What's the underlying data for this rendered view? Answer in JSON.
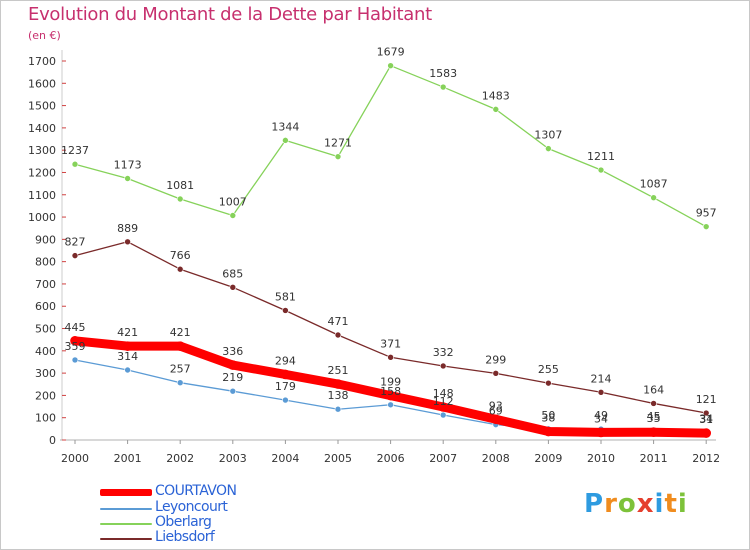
{
  "title": "Evolution du Montant de la Dette par Habitant",
  "unit_label": "(en €)",
  "logo": {
    "text": "Proxiti",
    "letter_colors": [
      "#2e9be0",
      "#f08c1e",
      "#7dc23a",
      "#e53f2e",
      "#2e9be0",
      "#f08c1e",
      "#7dc23a"
    ]
  },
  "chart_data": {
    "type": "line",
    "title": "Evolution du Montant de la Dette par Habitant",
    "ylabel": "(en €)",
    "xlabel": "",
    "ylim": [
      0,
      1700
    ],
    "y_ticks": [
      0,
      100,
      200,
      300,
      400,
      500,
      600,
      700,
      800,
      900,
      1000,
      1100,
      1200,
      1300,
      1400,
      1500,
      1600,
      1700
    ],
    "grid": false,
    "legend_position": "bottom-left",
    "categories": [
      "2000",
      "2001",
      "2002",
      "2003",
      "2004",
      "2005",
      "2006",
      "2007",
      "2008",
      "2009",
      "2010",
      "2011",
      "2012"
    ],
    "series": [
      {
        "name": "COURTAVON",
        "color": "#ff0000",
        "emphasis": true,
        "values": [
          445,
          421,
          421,
          336,
          294,
          251,
          199,
          148,
          93,
          38,
          34,
          35,
          31
        ],
        "labels": [
          "445",
          "421",
          "421",
          "336",
          "294",
          "251",
          "199",
          "148",
          "93",
          "38",
          "34",
          "35",
          "31"
        ]
      },
      {
        "name": "Leyoncourt",
        "color": "#5b9bd5",
        "emphasis": false,
        "values": [
          359,
          314,
          257,
          219,
          179,
          138,
          158,
          112,
          69,
          50,
          49,
          45,
          34
        ],
        "labels": [
          "359",
          "314",
          "257",
          "219",
          "179",
          "138",
          "158",
          "112",
          "69",
          "50",
          "49",
          "45",
          "34"
        ]
      },
      {
        "name": "Oberlarg",
        "color": "#86d25a",
        "emphasis": false,
        "values": [
          1237,
          1173,
          1081,
          1007,
          1344,
          1271,
          1679,
          1583,
          1483,
          1307,
          1211,
          1087,
          957
        ],
        "labels": [
          "1237",
          "1173",
          "1081",
          "1007",
          "1344",
          "1271",
          "1679",
          "1583",
          "1483",
          "1307",
          "1211",
          "1087",
          "957"
        ]
      },
      {
        "name": "Liebsdorf",
        "color": "#7a2a2a",
        "emphasis": false,
        "values": [
          827,
          889,
          766,
          685,
          581,
          471,
          371,
          332,
          299,
          255,
          214,
          164,
          121
        ],
        "labels": [
          "827",
          "889",
          "766",
          "685",
          "581",
          "471",
          "371",
          "332",
          "299",
          "255",
          "214",
          "164",
          "121"
        ]
      }
    ]
  }
}
